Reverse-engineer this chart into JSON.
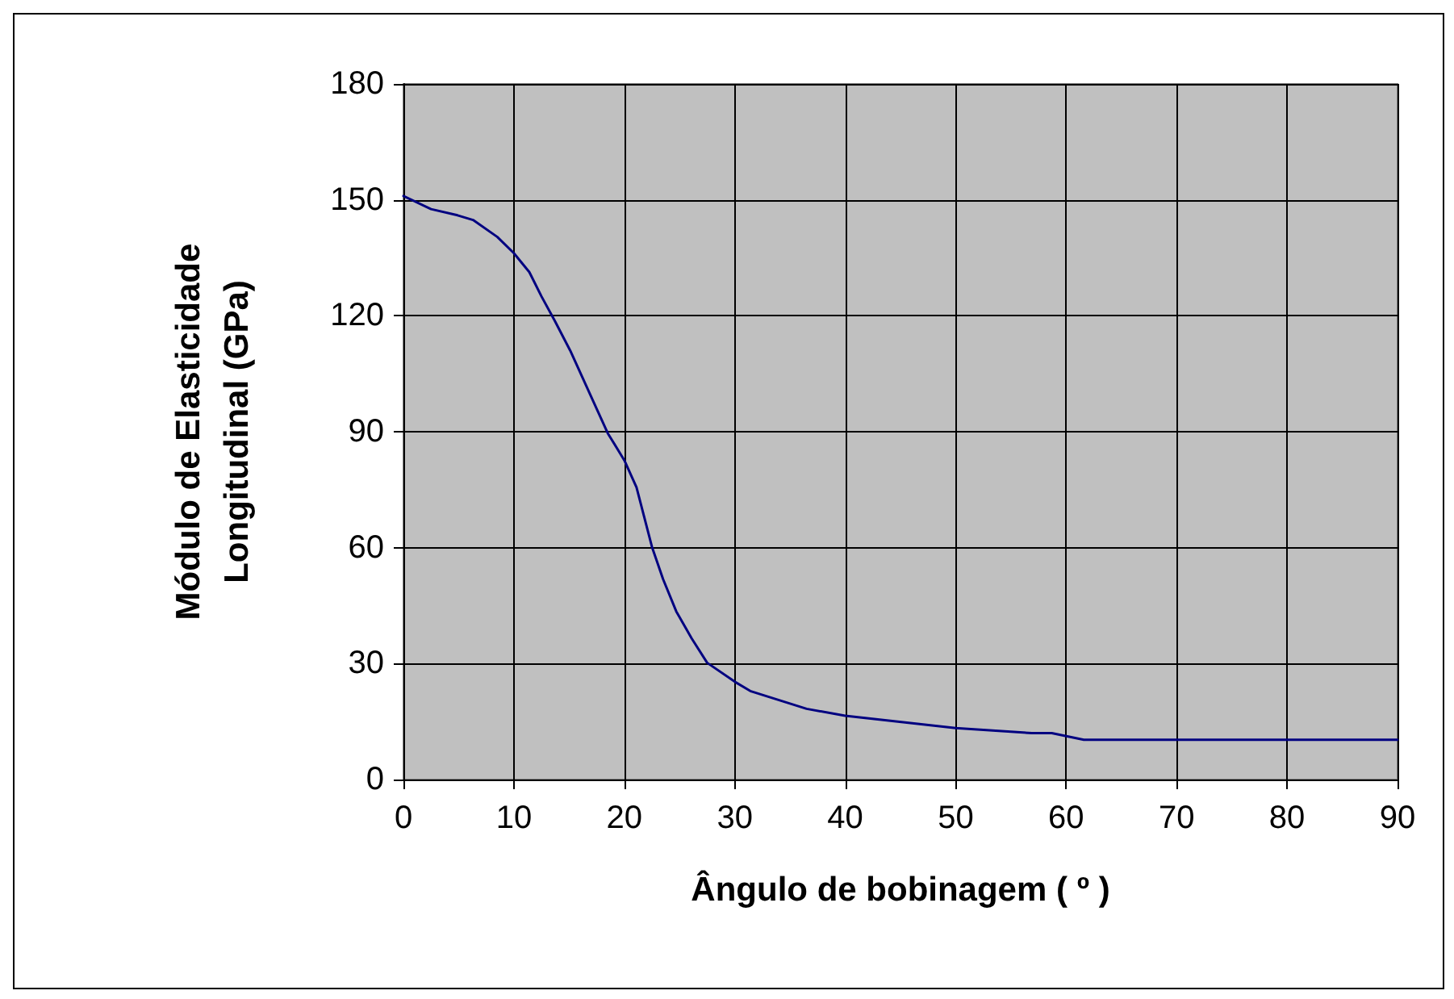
{
  "chart_data": {
    "type": "line",
    "xlabel": "Ângulo de bobinagem ( º )",
    "ylabel": "Módulo de Elasticidade\nLongitudinal (GPa)",
    "x": [
      0,
      2.5,
      4.9,
      6.3,
      8.5,
      10,
      11.4,
      12.5,
      13.7,
      15.1,
      18.5,
      20,
      21.1,
      22.5,
      23.5,
      24.7,
      26.1,
      27.5,
      30,
      31.4,
      36.5,
      40,
      50,
      56.9,
      58.7,
      61.6,
      70,
      80,
      90
    ],
    "series": [
      {
        "color": "#000080",
        "values": [
          151,
          147.6,
          146,
          144.8,
          140.4,
          136.2,
          131.3,
          125,
          118.7,
          111,
          89.6,
          82.6,
          75.6,
          60.2,
          51.9,
          43.5,
          36.5,
          30.2,
          25.3,
          22.9,
          18.3,
          16.5,
          13.3,
          12,
          12,
          10.3,
          10.3,
          10.3,
          10.3
        ]
      }
    ],
    "xlim": [
      0,
      90
    ],
    "xticks": [
      0,
      10,
      20,
      30,
      40,
      50,
      60,
      70,
      80,
      90
    ],
    "ylim": [
      0,
      180
    ],
    "yticks": [
      0,
      30,
      60,
      90,
      120,
      150,
      180
    ],
    "grid": true,
    "marker": "none",
    "line_style": "solid"
  }
}
